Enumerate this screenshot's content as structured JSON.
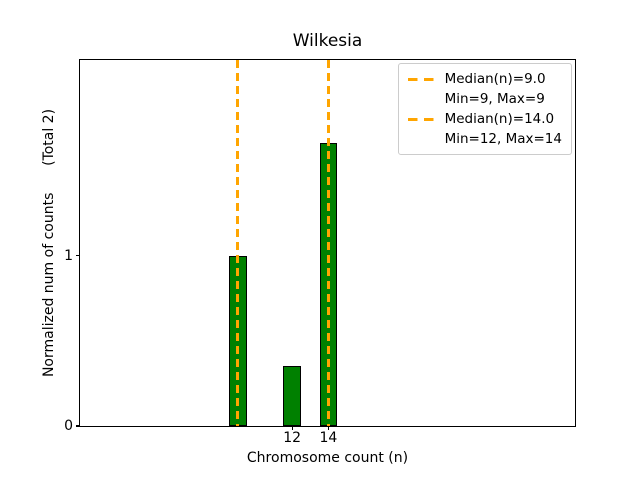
{
  "figure": {
    "background": "#ffffff"
  },
  "chart_data": {
    "type": "bar",
    "title": "Wilkesia",
    "xlabel": "Chromosome count (n)",
    "ylabel": "Normalized num of counts      (Total 2)",
    "bars": {
      "x": [
        9,
        12,
        14
      ],
      "heights": [
        1.0,
        0.35,
        1.66
      ],
      "width": 0.97,
      "color": "#008000",
      "edge_color": "#000000"
    },
    "vlines": {
      "x": [
        9.0,
        14.0
      ],
      "color": "#FFA500",
      "style": "dashed"
    },
    "xlim": [
      0.3,
      27.6
    ],
    "ylim": [
      0,
      2.15
    ],
    "xticks": [
      "12",
      "14"
    ],
    "xtick_values": [
      12,
      14
    ],
    "yticks": [
      "0",
      "1"
    ],
    "ytick_values": [
      0,
      1
    ],
    "grid": false,
    "legend": {
      "position": "top-right",
      "entries": [
        {
          "handle": "dashed-line",
          "label": "Median(n)=9.0"
        },
        {
          "handle": "none",
          "label": "Min=9, Max=9"
        },
        {
          "handle": "dashed-line",
          "label": "Median(n)=14.0"
        },
        {
          "handle": "none",
          "label": "Min=12, Max=14"
        }
      ]
    }
  }
}
